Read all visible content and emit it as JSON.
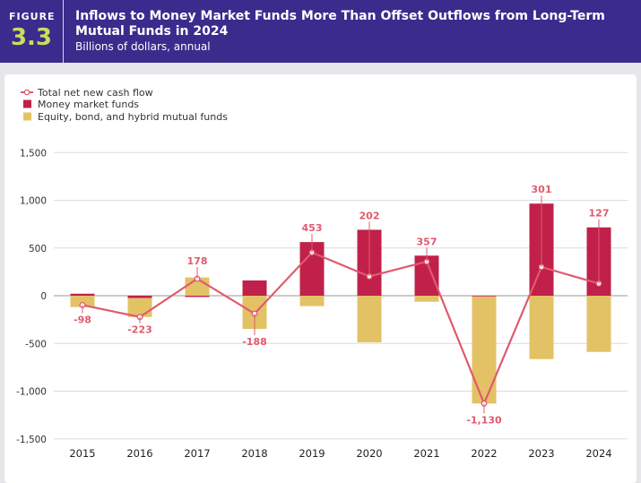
{
  "header": {
    "figure_label": "FIGURE",
    "figure_number": "3.3",
    "title_line1": "Inflows to Money Market Funds More Than Offset Outflows from Long-Term",
    "title_line2": "Mutual Funds in 2024",
    "subtitle": "Billions of dollars, annual"
  },
  "colors": {
    "header_bg": "#3b2b8c",
    "money_market": "#c0204a",
    "long_term": "#e3c266",
    "total_line": "#e05a6e",
    "figure_number": "#c9de5b"
  },
  "chart_data": {
    "type": "bar",
    "categories": [
      "2015",
      "2016",
      "2017",
      "2018",
      "2019",
      "2020",
      "2021",
      "2022",
      "2023",
      "2024"
    ],
    "series": [
      {
        "name": "Total net new cash flow",
        "kind": "line",
        "values": [
          -98,
          -223,
          178,
          -188,
          453,
          202,
          357,
          -1130,
          301,
          127
        ]
      },
      {
        "name": "Money market funds",
        "kind": "bar",
        "values": [
          21,
          -25,
          -13,
          160,
          562,
          691,
          420,
          -8,
          965,
          716
        ]
      },
      {
        "name": "Equity, bond, and hybrid mutual funds",
        "kind": "bar",
        "values": [
          -119,
          -198,
          191,
          -348,
          -109,
          -489,
          -63,
          -1122,
          -664,
          -589
        ]
      }
    ],
    "data_labels": [
      "-98",
      "-223",
      "178",
      "-188",
      "453",
      "202",
      "357",
      "-1,130",
      "301",
      "127"
    ],
    "y_ticks": [
      1500,
      1000,
      500,
      0,
      -500,
      -1000,
      -1500
    ],
    "y_tick_labels": [
      "1,500",
      "1,000",
      "500",
      "0",
      "-500",
      "-1,000",
      "-1,500"
    ],
    "ylim": [
      -1500,
      1500
    ],
    "legend_position": "top-left",
    "grid": true
  }
}
